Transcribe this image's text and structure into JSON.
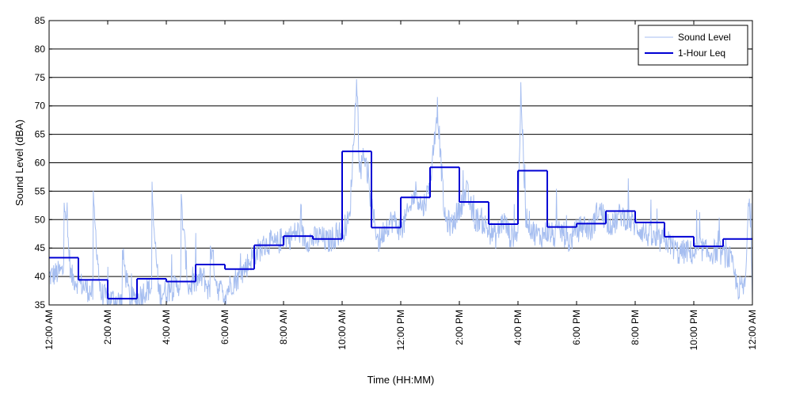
{
  "chart_data": {
    "type": "line",
    "xlabel": "Time (HH:MM)",
    "ylabel": "Sound Level (dBA)",
    "ylim": [
      35,
      85
    ],
    "xlim_hours": [
      0,
      24
    ],
    "y_ticks": [
      "35",
      "40",
      "45",
      "50",
      "55",
      "60",
      "65",
      "70",
      "75",
      "80",
      "85"
    ],
    "x_ticks": [
      "12:00 AM",
      "2:00 AM",
      "4:00 AM",
      "6:00 AM",
      "8:00 AM",
      "10:00 AM",
      "12:00 PM",
      "2:00 PM",
      "4:00 PM",
      "6:00 PM",
      "8:00 PM",
      "10:00 PM",
      "12:00 AM"
    ],
    "grid": "horizontal",
    "legend_position": "top-right",
    "series": [
      {
        "name": "Sound Level",
        "color": "#a6bef0",
        "style": "continuous-noisy",
        "x_hours": [
          0,
          0.25,
          0.5,
          0.5,
          0.75,
          1,
          1.25,
          1.5,
          1.5,
          1.75,
          2,
          2.25,
          2.5,
          2.5,
          2.75,
          3,
          3.25,
          3.5,
          3.5,
          3.75,
          4,
          4.25,
          4.5,
          4.5,
          4.75,
          5,
          5.25,
          5.5,
          5.5,
          5.75,
          6,
          6.25,
          6.5,
          6.75,
          7,
          7.25,
          7.5,
          7.75,
          8,
          8.25,
          8.5,
          8.75,
          9,
          9.25,
          9.5,
          9.75,
          10,
          10.25,
          10.5,
          10.6,
          10.75,
          11,
          11.25,
          11.5,
          11.75,
          12,
          12.25,
          12.5,
          12.75,
          13,
          13.25,
          13.5,
          13.75,
          14,
          14.25,
          14.5,
          14.75,
          15,
          15.25,
          15.5,
          15.75,
          16,
          16.1,
          16.25,
          16.5,
          16.75,
          17,
          17.25,
          17.5,
          17.75,
          18,
          18.25,
          18.5,
          18.75,
          19,
          19.25,
          19.5,
          19.75,
          20,
          20.25,
          20.5,
          20.75,
          21,
          21.25,
          21.5,
          21.75,
          22,
          22.25,
          22.5,
          22.75,
          23,
          23.25,
          23.5,
          23.75,
          23.9,
          24
        ],
        "values": [
          40,
          40.5,
          41,
          55.5,
          40,
          39,
          38,
          37,
          53.5,
          37,
          36,
          36,
          35.5,
          44,
          36,
          36,
          37.5,
          38,
          53.5,
          37,
          37.5,
          38,
          39,
          53.5,
          38,
          39,
          40,
          37,
          46,
          38,
          37,
          39,
          40,
          42,
          44,
          45,
          46,
          45.5,
          47,
          47,
          48,
          46.5,
          46.5,
          47,
          46,
          47,
          48,
          50,
          74.5,
          58,
          62,
          52,
          46,
          49,
          50,
          48,
          51,
          55,
          52,
          56,
          70,
          50,
          49,
          52,
          55,
          50,
          50,
          48,
          47,
          50,
          47,
          48,
          73.5,
          51,
          48,
          47,
          48,
          47,
          48,
          46,
          48,
          49,
          48,
          52,
          50,
          49,
          51,
          50,
          49,
          48,
          47,
          46,
          46.5,
          45.5,
          44,
          44.5,
          44,
          45,
          44,
          44.5,
          44,
          43,
          38,
          38,
          55,
          38
        ]
      },
      {
        "name": "1-Hour Leq",
        "color": "#0000d4",
        "style": "step",
        "x_hours": [
          0,
          1,
          2,
          3,
          4,
          5,
          6,
          7,
          8,
          9,
          10,
          11,
          12,
          13,
          14,
          15,
          16,
          17,
          18,
          19,
          20,
          21,
          22,
          23
        ],
        "values": [
          43.3,
          39.4,
          36.1,
          39.6,
          39.1,
          42.1,
          41.3,
          45.5,
          47.1,
          46.6,
          62,
          48.6,
          53.9,
          59.2,
          53.1,
          49.2,
          58.6,
          48.7,
          49.3,
          51.5,
          49.5,
          47,
          45.3,
          46.6
        ]
      }
    ]
  }
}
